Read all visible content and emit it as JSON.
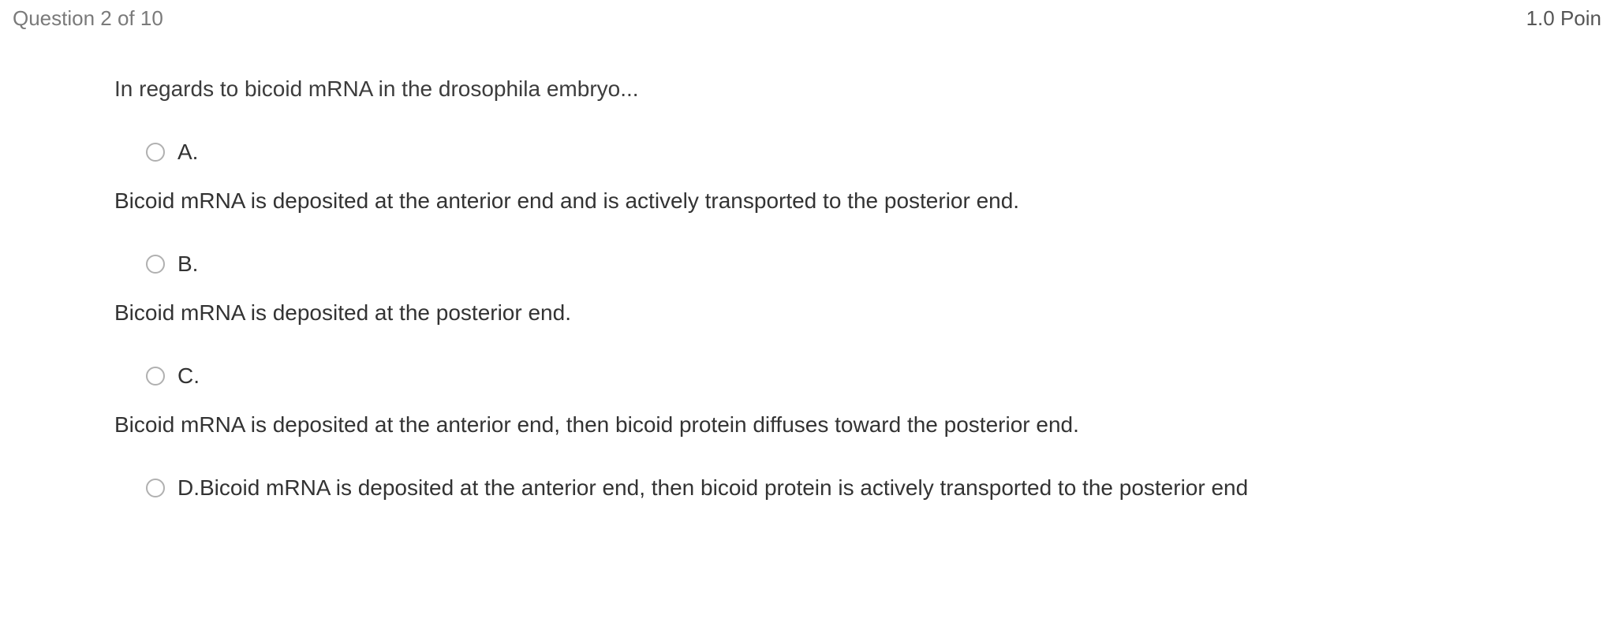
{
  "header": {
    "question_counter": "Question 2 of 10",
    "points": "1.0 Poin"
  },
  "question": {
    "text": "In regards to bicoid mRNA in the drosophila embryo..."
  },
  "options": [
    {
      "letter": "A.",
      "text": "Bicoid mRNA is deposited at the anterior end and is actively transported to the posterior end."
    },
    {
      "letter": "B.",
      "text": "Bicoid mRNA is deposited at the posterior end."
    },
    {
      "letter": "C.",
      "text": "Bicoid mRNA is deposited at the anterior end, then bicoid protein diffuses toward the posterior end."
    },
    {
      "letter": "D.",
      "text": "Bicoid mRNA is deposited at the anterior end, then bicoid protein is actively transported to the posterior end"
    }
  ]
}
